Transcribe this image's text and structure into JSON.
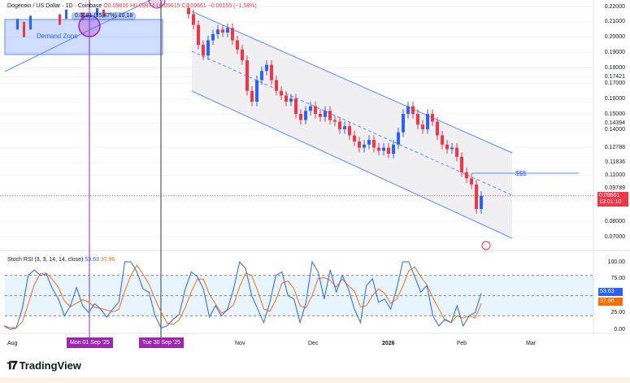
{
  "header": {
    "symbol": "Dogecoin / US Dollar · 1D · Coinbase",
    "ohlc": "O0.09816 H0.09874 L0.09615 C0.09661",
    "change": "−0.00155 (−1.58%)",
    "measure_tooltip": "0.0181 (15.47%) 10,18"
  },
  "drawings": {
    "demand_zone_label": "Demand Zone",
    "liquidity_label": "$$$"
  },
  "price_badge": {
    "price": "0.09661",
    "countdown": "13:01:10"
  },
  "indicator": {
    "label": "Stoch RSI (3, 3, 14, 14, close)",
    "k_value": "53.63",
    "d_value": "37.96"
  },
  "time_axis": {
    "labels": [
      "Aug",
      "Nov",
      "Dec",
      "2026",
      "Feb",
      "Mar"
    ],
    "badges": [
      "Mon 01 Sep '25",
      "Tue 30 Sep '25"
    ]
  },
  "brand": "TradingView",
  "colors": {
    "up": "#2962ff",
    "down": "#f23645",
    "k": "#2962ff",
    "d": "#ff6d00",
    "marker": "#9c27b0"
  },
  "chart_data": {
    "type": "candlestick",
    "price_axis": {
      "ylim": [
        0.07,
        0.22
      ],
      "ticks": [
        "0.22000",
        "0.21000",
        "0.20000",
        "0.19000",
        "0.18000",
        "0.17421",
        "0.17000",
        "0.16000",
        "0.15000",
        "0.14394",
        "0.14000",
        "0.12788",
        "0.11836",
        "0.11000",
        "0.09789",
        "0.08000",
        "0.07000"
      ]
    },
    "closes": [
      0.215,
      0.208,
      0.195,
      0.188,
      0.198,
      0.202,
      0.205,
      0.203,
      0.206,
      0.198,
      0.192,
      0.185,
      0.165,
      0.158,
      0.172,
      0.178,
      0.182,
      0.172,
      0.165,
      0.162,
      0.158,
      0.16,
      0.15,
      0.146,
      0.152,
      0.155,
      0.15,
      0.148,
      0.152,
      0.146,
      0.145,
      0.14,
      0.142,
      0.136,
      0.132,
      0.128,
      0.13,
      0.133,
      0.128,
      0.126,
      0.128,
      0.124,
      0.13,
      0.138,
      0.15,
      0.155,
      0.15,
      0.143,
      0.14,
      0.15,
      0.145,
      0.136,
      0.13,
      0.127,
      0.128,
      0.122,
      0.112,
      0.108,
      0.104,
      0.088,
      0.0966
    ],
    "last_price": 0.09661,
    "stoch_rsi": {
      "ylim": [
        0,
        100
      ],
      "ticks": [
        "100.00",
        "75.00",
        "25.00",
        "0.00"
      ],
      "bands": [
        20,
        50,
        80
      ],
      "k": [
        5,
        0,
        2,
        30,
        80,
        88,
        80,
        82,
        60,
        45,
        20,
        35,
        62,
        35,
        25,
        38,
        30,
        18,
        30,
        40,
        100,
        100,
        85,
        60,
        55,
        20,
        2,
        5,
        15,
        22,
        60,
        85,
        78,
        60,
        18,
        35,
        20,
        30,
        60,
        100,
        90,
        50,
        30,
        10,
        40,
        80,
        85,
        50,
        45,
        10,
        40,
        100,
        85,
        45,
        88,
        55,
        80,
        60,
        30,
        10,
        65,
        75,
        40,
        45,
        30,
        60,
        100,
        100,
        78,
        55,
        65,
        20,
        5,
        15,
        10,
        35,
        5,
        20,
        25,
        53.63
      ]
    }
  }
}
